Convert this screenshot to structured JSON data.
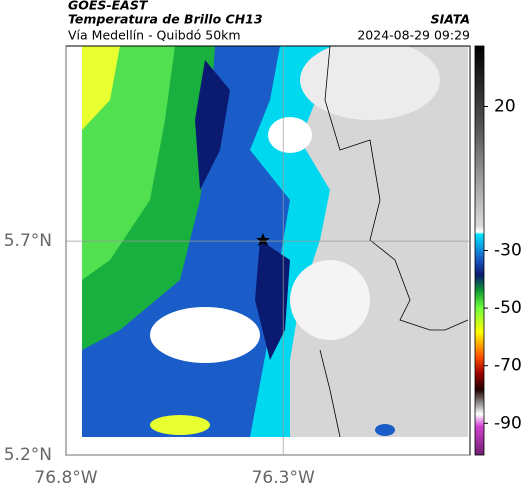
{
  "header": {
    "title": "GOES-EAST",
    "subtitle": "Temperatura de Brillo CH13",
    "caption": "Vía Medellín - Quibdó 50km",
    "source": "SIATA",
    "timestamp": "2024-08-29 09:29"
  },
  "map": {
    "lonlim": [
      -76.8,
      -75.87
    ],
    "latlim": [
      5.2,
      6.156
    ],
    "lon_ticks": [
      {
        "value": -76.8,
        "label": "76.8°W"
      },
      {
        "value": -76.3,
        "label": "76.3°W"
      }
    ],
    "lat_ticks": [
      {
        "value": 5.7,
        "label": "5.7°N"
      },
      {
        "value": 5.2,
        "label": "5.2°N"
      }
    ]
  },
  "colorbar": {
    "lim": [
      -101,
      41
    ],
    "ticks": [
      20,
      -30,
      -50,
      -70,
      -90
    ]
  }
}
